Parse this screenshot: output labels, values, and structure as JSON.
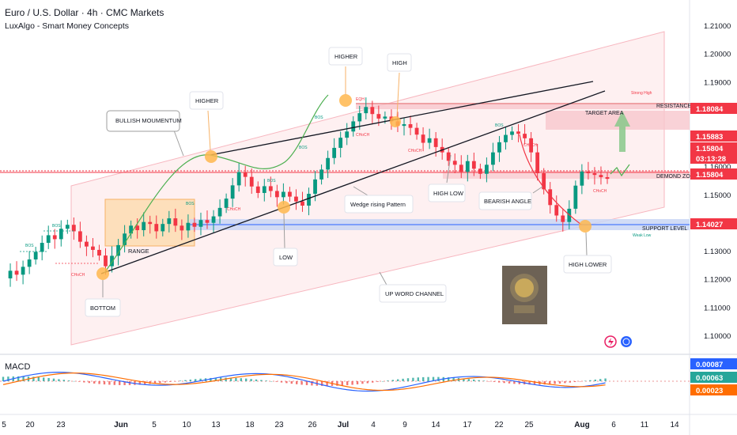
{
  "header": {
    "title": "Euro / U.S. Dollar · 4h · CMC Markets",
    "indicator": "LuxAlgo - Smart Money Concepts"
  },
  "chart_data": {
    "type": "candlestick",
    "y_ticks": [
      "1.21000",
      "1.20000",
      "1.19000",
      "1.18000",
      "1.17000",
      "1.16000",
      "1.15000",
      "1.14000",
      "1.13000",
      "1.12000",
      "1.11000",
      "1.10000"
    ],
    "ylim": [
      1.0985,
      1.2135
    ],
    "x_ticks": [
      "5",
      "20",
      "23",
      "Jun",
      "5",
      "10",
      "13",
      "18",
      "23",
      "26",
      "Jul",
      "4",
      "9",
      "14",
      "17",
      "22",
      "25",
      "Aug",
      "6",
      "11",
      "14"
    ],
    "price_labels": [
      {
        "text": "1.18084",
        "value": 1.18084,
        "color": "#f23645"
      },
      {
        "text": "1.15883",
        "value": 1.15883,
        "color": "#f23645"
      },
      {
        "text": "1.15804",
        "value": 1.15804,
        "color": "#f23645"
      },
      {
        "text": "03:13:28",
        "value": 1.15584,
        "color": "#f23645"
      },
      {
        "text": "1.15804",
        "value": 1.15804,
        "color": "#f23645"
      },
      {
        "text": "1.14027",
        "value": 1.14027,
        "color": "#f23645"
      }
    ],
    "annotations": [
      "BULLISH MOUMENTUM",
      "HIGHER",
      "HIGHER",
      "HIGH",
      "RANGE",
      "BOTTOM",
      "LOW",
      "Wedge rising Pattern",
      "HIGH LOW",
      "BEARISH ANGLE",
      "HIGH LOWER",
      "UP WORD CHANNEL"
    ],
    "zone_labels": [
      "RESISTANCE AREA",
      "TARGET AREA",
      "DEMOND ZONE",
      "SUPPORT LEVEL"
    ],
    "smc_labels": [
      "BOS",
      "CHoCH",
      "EQH",
      "Strong High",
      "Weak Low"
    ],
    "close_series": [
      1.1205,
      1.1232,
      1.1218,
      1.1246,
      1.1272,
      1.1299,
      1.1331,
      1.1358,
      1.1344,
      1.1381,
      1.1395,
      1.1372,
      1.1335,
      1.1318,
      1.1306,
      1.1286,
      1.1248,
      1.1285,
      1.1323,
      1.1364,
      1.1392,
      1.1376,
      1.1405,
      1.1398,
      1.1372,
      1.1398,
      1.1418,
      1.1392,
      1.1375,
      1.1402,
      1.1388,
      1.1412,
      1.1402,
      1.1425,
      1.1455,
      1.1488,
      1.1535,
      1.1582,
      1.1565,
      1.1531,
      1.1508,
      1.1532,
      1.1515,
      1.1493,
      1.1512,
      1.1495,
      1.1478,
      1.1463,
      1.1505,
      1.1556,
      1.1591,
      1.1632,
      1.1668,
      1.1704,
      1.1726,
      1.1762,
      1.1791,
      1.1813,
      1.1788,
      1.1772,
      1.1779,
      1.1762,
      1.1746,
      1.1752,
      1.1739,
      1.1715,
      1.1686,
      1.1702,
      1.1671,
      1.1652,
      1.1622,
      1.1608,
      1.1583,
      1.1621,
      1.1594,
      1.1576,
      1.1608,
      1.1652,
      1.1688,
      1.1714,
      1.1726,
      1.1718,
      1.1702,
      1.1652,
      1.1578,
      1.1521,
      1.1465,
      1.1428,
      1.1405,
      1.1452,
      1.1534,
      1.1584,
      1.1578,
      1.1572,
      1.1564,
      1.1558
    ],
    "macd": {
      "name": "MACD",
      "values": [
        "0.00087",
        "0.00063",
        "0.00023"
      ],
      "colors": [
        "#2962ff",
        "#26a69a",
        "#ff6d00"
      ]
    }
  }
}
